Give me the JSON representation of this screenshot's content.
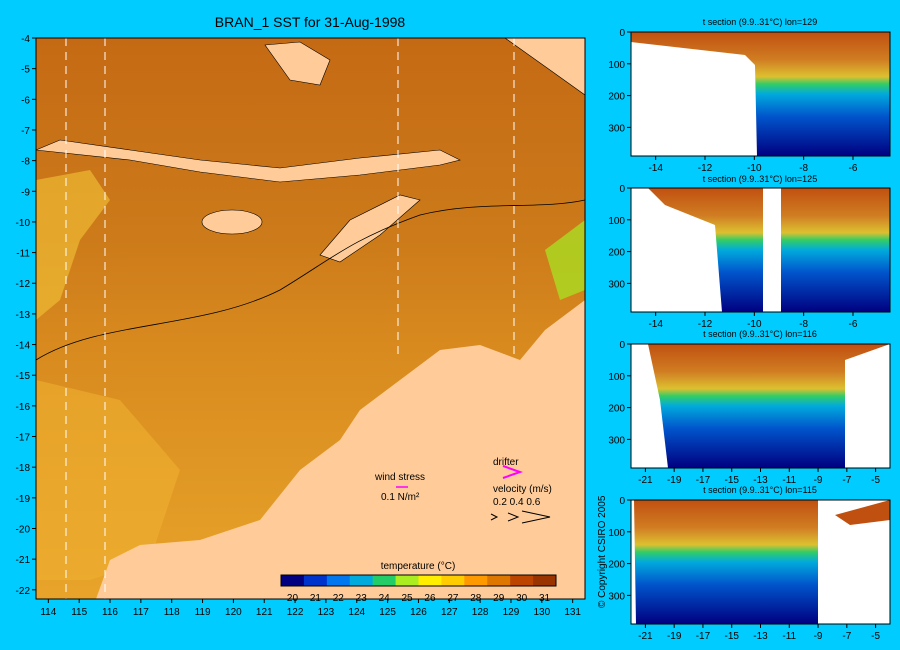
{
  "title": "BRAN_1 SST for 31-Aug-1998",
  "copyright": "© Copyright CSIRO 2005",
  "colors": {
    "background": "#00ccff",
    "land": "#ffcc99",
    "drifter": "#ff00ff",
    "wind": "#ff00ff"
  },
  "map": {
    "x_ticks": [
      "114",
      "115",
      "116",
      "117",
      "118",
      "119",
      "120",
      "121",
      "122",
      "123",
      "124",
      "125",
      "126",
      "127",
      "128",
      "129",
      "130",
      "131"
    ],
    "y_ticks": [
      "-4",
      "-5",
      "-6",
      "-7",
      "-8",
      "-9",
      "-10",
      "-11",
      "-12",
      "-13",
      "-14",
      "-15",
      "-16",
      "-17",
      "-18",
      "-19",
      "-20",
      "-21",
      "-22"
    ],
    "section_lons": [
      129,
      125,
      116,
      115
    ],
    "legend": {
      "wind_stress": "wind stress",
      "wind_unit": "0.1 N/m²",
      "drifter": "drifter",
      "velocity": "velocity (m/s)",
      "velocity_scale": "0.2 0.4 0.6"
    },
    "colorbar": {
      "label": "temperature (°C)",
      "ticks": [
        "20",
        "21",
        "22",
        "23",
        "24",
        "25",
        "26",
        "27",
        "28",
        "29",
        "30",
        "31"
      ],
      "colors": [
        "#000080",
        "#0033cc",
        "#0077ee",
        "#00aadd",
        "#22cc66",
        "#aaee22",
        "#ffee00",
        "#ffcc00",
        "#ff9900",
        "#dd7700",
        "#bb4400",
        "#993300"
      ]
    }
  },
  "chart_data": [
    {
      "type": "heatmap",
      "title": "BRAN_1 SST for 31-Aug-1998",
      "xlim": [
        113.6,
        131.4
      ],
      "ylim": [
        -22.3,
        -4
      ],
      "colorbar_label": "temperature (°C)",
      "colorbar_range": [
        20,
        31
      ]
    },
    {
      "type": "heatmap",
      "title": "t section (9.9..31°C) lon=129",
      "x_ticks": [
        "-14",
        "-12",
        "-10",
        "-8",
        "-6"
      ],
      "y_ticks": [
        "0",
        "100",
        "200",
        "300"
      ],
      "xlim": [
        -15,
        -4.5
      ],
      "ylim": [
        0,
        390
      ]
    },
    {
      "type": "heatmap",
      "title": "t section (9.9..31°C) lon=125",
      "x_ticks": [
        "-14",
        "-12",
        "-10",
        "-8",
        "-6"
      ],
      "y_ticks": [
        "0",
        "100",
        "200",
        "300"
      ],
      "xlim": [
        -15,
        -4.5
      ],
      "ylim": [
        0,
        390
      ]
    },
    {
      "type": "heatmap",
      "title": "t section (9.9..31°C) lon=116",
      "x_ticks": [
        "-21",
        "-19",
        "-17",
        "-15",
        "-13",
        "-11",
        "-9",
        "-7",
        "-5"
      ],
      "y_ticks": [
        "0",
        "100",
        "200",
        "300"
      ],
      "xlim": [
        -22,
        -4
      ],
      "ylim": [
        0,
        390
      ]
    },
    {
      "type": "heatmap",
      "title": "t section (9.9..31°C) lon=115",
      "x_ticks": [
        "-21",
        "-19",
        "-17",
        "-15",
        "-13",
        "-11",
        "-9",
        "-7",
        "-5"
      ],
      "y_ticks": [
        "0",
        "100",
        "200",
        "300"
      ],
      "xlim": [
        -22,
        -4
      ],
      "ylim": [
        0,
        390
      ]
    }
  ]
}
